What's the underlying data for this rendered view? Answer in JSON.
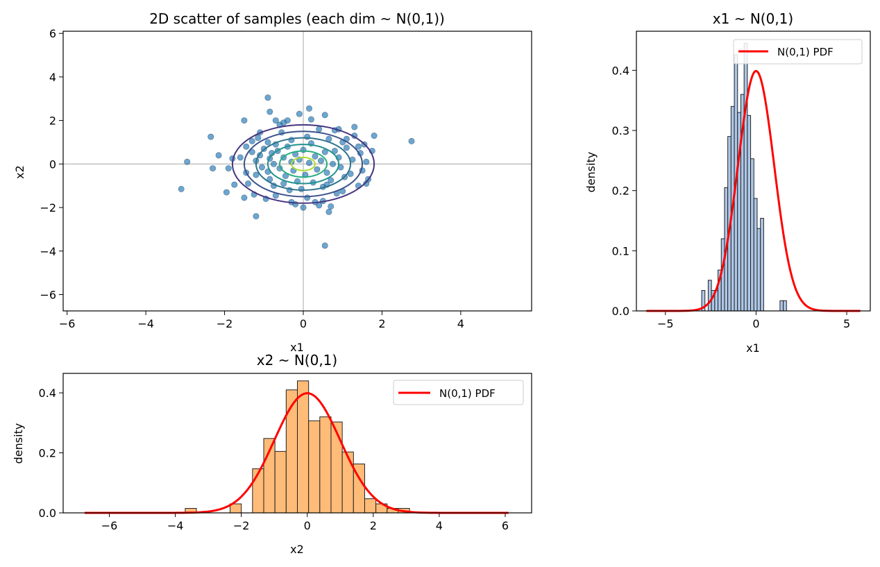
{
  "chart_data": [
    {
      "type": "scatter",
      "title": "2D scatter of samples (each dim ~ N(0,1))",
      "xlabel": "x1",
      "ylabel": "x2",
      "xlim": [
        -6.1,
        5.8
      ],
      "ylim": [
        -6.75,
        6.1
      ],
      "xticks": [
        -6,
        -4,
        -2,
        0,
        2,
        4
      ],
      "yticks": [
        -6,
        -4,
        -2,
        0,
        2,
        4,
        6
      ],
      "grid": false,
      "reference_lines": {
        "x": 0,
        "y": 0
      },
      "contour_levels": [
        1.8,
        1.5,
        1.2,
        0.9,
        0.6,
        0.3
      ],
      "contour_colors": [
        "#463480",
        "#3b528b",
        "#2c728e",
        "#21918c",
        "#28ae80",
        "#addc30"
      ],
      "point_color": "#1f77b4",
      "series": [
        {
          "x": [
            -3.1,
            -2.95,
            -2.35,
            -2.3,
            -2.15,
            -1.95,
            -1.9,
            -1.75,
            -1.6,
            -1.5,
            -1.45,
            -1.45,
            -1.4,
            -1.3,
            -1.25,
            -1.2,
            -1.2,
            -1.15,
            -1.1,
            -1.05,
            -1.0,
            -0.95,
            -0.9,
            -0.9,
            -0.85,
            -0.85,
            -0.8,
            -0.75,
            -0.75,
            -0.7,
            -0.7,
            -0.65,
            -0.6,
            -0.55,
            -0.5,
            -0.5,
            -0.45,
            -0.4,
            -0.35,
            -0.3,
            -0.3,
            -0.25,
            -0.2,
            -0.15,
            -0.1,
            -0.05,
            0.0,
            0.05,
            0.1,
            0.1,
            0.15,
            0.2,
            0.25,
            0.3,
            0.35,
            0.4,
            0.45,
            0.5,
            0.55,
            0.6,
            0.65,
            0.7,
            0.75,
            0.8,
            0.85,
            0.9,
            0.95,
            1.0,
            1.05,
            1.1,
            1.2,
            1.25,
            1.3,
            1.4,
            1.45,
            1.5,
            1.55,
            1.6,
            1.65,
            1.75,
            1.8,
            2.75,
            -0.9,
            -0.85,
            -0.4,
            0.15,
            0.55,
            0.65,
            -1.2,
            -1.5,
            -0.3,
            0.0,
            0.2,
            0.4,
            0.8,
            -1.1,
            -0.6,
            0.3,
            1.1,
            1.3,
            -0.2,
            0.6,
            0.9,
            -0.7,
            1.0,
            1.4,
            -1.3,
            -0.1,
            0.7,
            1.6,
            -1.8,
            -0.5,
            0.5
          ],
          "y": [
            -1.15,
            0.1,
            1.25,
            -0.2,
            0.4,
            -1.3,
            -0.2,
            -0.95,
            0.3,
            2.0,
            0.8,
            -0.4,
            -0.9,
            0.55,
            -1.4,
            -0.5,
            0.15,
            1.2,
            0.4,
            -0.15,
            0.7,
            -1.6,
            -0.35,
            1.0,
            0.25,
            -0.7,
            0.5,
            -1.0,
            0.0,
            0.9,
            -1.45,
            0.6,
            -0.2,
            1.45,
            -0.9,
            0.3,
            -0.55,
            0.8,
            -1.2,
            0.1,
            1.1,
            -0.3,
            0.45,
            -0.8,
            0.2,
            -1.15,
            0.65,
            -0.5,
            1.25,
            -1.55,
            0.05,
            0.95,
            -0.85,
            0.35,
            -0.25,
            1.6,
            0.15,
            -1.05,
            0.55,
            -0.4,
            1.15,
            -0.75,
            0.0,
            0.6,
            -1.35,
            0.3,
            -0.15,
            1.0,
            -0.6,
            0.75,
            -0.45,
            0.2,
            1.3,
            -1.0,
            0.5,
            -0.3,
            0.9,
            0.1,
            -0.7,
            0.6,
            1.3,
            1.05,
            3.05,
            2.4,
            2.0,
            2.55,
            2.25,
            -2.2,
            -2.4,
            -1.55,
            -1.75,
            -2.0,
            2.05,
            -1.9,
            1.55,
            1.45,
            1.8,
            -1.75,
            1.15,
            1.7,
            -1.85,
            -0.95,
            1.6,
            2.0,
            -1.25,
            0.8,
            1.05,
            2.3,
            -1.95,
            -0.9,
            0.25,
            1.9,
            -1.7
          ]
        },
        {
          "x": [
            0.55
          ],
          "y": [
            -3.75
          ]
        }
      ]
    },
    {
      "type": "bar",
      "title": "x1 ~ N(0,1)",
      "xlabel": "x1",
      "ylabel": "density",
      "xlim": [
        -6.6,
        6.3
      ],
      "ylim": [
        0,
        0.465
      ],
      "xticks": [
        -5,
        0,
        5
      ],
      "yticks": [
        0.0,
        0.1,
        0.2,
        0.3,
        0.4
      ],
      "bin_start": -3.0,
      "bin_width": 0.18,
      "values": [
        0.034,
        0.0,
        0.051,
        0.034,
        0.034,
        0.068,
        0.12,
        0.205,
        0.29,
        0.34,
        0.426,
        0.33,
        0.36,
        0.445,
        0.325,
        0.253,
        0.187,
        0.137,
        0.154,
        0.0,
        0.0,
        0.0,
        0.0,
        0.0,
        0.017,
        0.017
      ],
      "bar_color": "#aec7e8",
      "series": [
        {
          "name": "N(0,1) PDF",
          "color": "#ff0000",
          "x_range": [
            -6.05,
            5.75
          ]
        }
      ],
      "legend_position": "upper right",
      "grid": false
    },
    {
      "type": "bar",
      "title": "x2 ~ N(0,1)",
      "xlabel": "x2",
      "ylabel": "density",
      "xlim": [
        -7.4,
        6.8
      ],
      "ylim": [
        0,
        0.465
      ],
      "xticks": [
        -6,
        -4,
        -2,
        0,
        2,
        4,
        6
      ],
      "yticks": [
        0.0,
        0.2,
        0.4
      ],
      "bin_start": -3.7,
      "bin_width": 0.34,
      "values": [
        0.015,
        0.0,
        0.0,
        0.0,
        0.03,
        0.0,
        0.147,
        0.248,
        0.205,
        0.41,
        0.44,
        0.307,
        0.32,
        0.303,
        0.203,
        0.163,
        0.047,
        0.03,
        0.015,
        0.015
      ],
      "bar_color": "#ffbb78",
      "series": [
        {
          "name": "N(0,1) PDF",
          "color": "#ff0000",
          "x_range": [
            -6.75,
            6.1
          ]
        }
      ],
      "legend_position": "upper right",
      "grid": false
    }
  ]
}
